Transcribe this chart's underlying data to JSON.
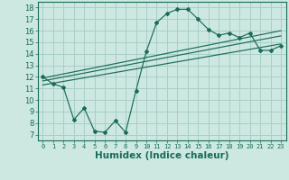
{
  "bg_color": "#cce8e0",
  "grid_color": "#a8cfc8",
  "line_color": "#1a6b5a",
  "xlabel": "Humidex (Indice chaleur)",
  "xlim": [
    -0.5,
    23.5
  ],
  "ylim": [
    6.5,
    18.5
  ],
  "xticks": [
    0,
    1,
    2,
    3,
    4,
    5,
    6,
    7,
    8,
    9,
    10,
    11,
    12,
    13,
    14,
    15,
    16,
    17,
    18,
    19,
    20,
    21,
    22,
    23
  ],
  "yticks": [
    7,
    8,
    9,
    10,
    11,
    12,
    13,
    14,
    15,
    16,
    17,
    18
  ],
  "main_x": [
    0,
    1,
    2,
    3,
    4,
    5,
    6,
    7,
    8,
    9,
    10,
    11,
    12,
    13,
    14,
    15,
    16,
    17,
    18,
    19,
    20,
    21,
    22,
    23
  ],
  "main_y": [
    12,
    11.4,
    11.1,
    8.3,
    9.3,
    7.3,
    7.2,
    8.2,
    7.2,
    10.8,
    14.2,
    16.7,
    17.5,
    17.85,
    17.85,
    17.0,
    16.1,
    15.6,
    15.8,
    15.4,
    15.8,
    14.3,
    14.3,
    14.7
  ],
  "line2_x": [
    0,
    23
  ],
  "line2_y": [
    11.9,
    16.0
  ],
  "line3_x": [
    0,
    23
  ],
  "line3_y": [
    11.65,
    15.55
  ],
  "line4_x": [
    0,
    23
  ],
  "line4_y": [
    11.3,
    14.85
  ]
}
